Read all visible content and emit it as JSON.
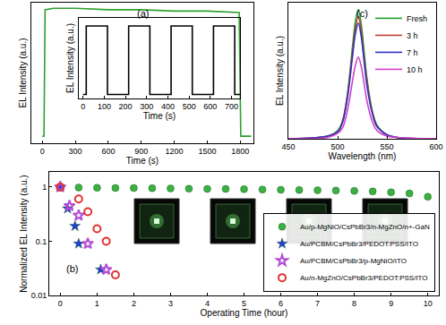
{
  "chart_data": [
    {
      "type": "line",
      "title": "(a)",
      "x_label": "Time (s)",
      "y_label": "EL Intensity (a.u.)",
      "x": [
        0,
        15,
        25,
        100,
        300,
        600,
        900,
        1200,
        1500,
        1700,
        1790,
        1805,
        1900
      ],
      "values": [
        0.05,
        0.05,
        0.95,
        0.96,
        0.96,
        0.95,
        0.95,
        0.94,
        0.94,
        0.93,
        0.93,
        0.05,
        0.05
      ],
      "color": "#2ca02c",
      "xlim": [
        -100,
        1920
      ],
      "xticks": [
        0,
        300,
        600,
        900,
        1200,
        1500,
        1800
      ],
      "ylim": [
        0,
        1
      ],
      "tick_labels": "x"
    },
    {
      "type": "line",
      "x_label": "Time (s)",
      "y_label": "EL Intensity (a.u.)",
      "x": [
        0,
        15,
        15,
        115,
        115,
        215,
        215,
        315,
        315,
        415,
        415,
        515,
        515,
        615,
        615,
        715,
        715,
        740
      ],
      "values": [
        0.05,
        0.05,
        0.9,
        0.9,
        0.05,
        0.05,
        0.9,
        0.9,
        0.05,
        0.05,
        0.9,
        0.9,
        0.05,
        0.05,
        0.9,
        0.9,
        0.05,
        0.05
      ],
      "color": "#000000",
      "xlim": [
        -20,
        740
      ],
      "xticks": [
        0,
        100,
        200,
        300,
        400,
        500,
        600,
        700
      ],
      "ylim": [
        0,
        1
      ],
      "tick_labels": "x"
    },
    {
      "type": "scatter",
      "title": "(b)",
      "x_label": "Operating Time (hour)",
      "y_label": "Normalized EL Intensity (a.u.)",
      "log": "y",
      "legend": "lower right",
      "xlim": [
        -0.3,
        10.3
      ],
      "xticks": [
        0,
        1,
        2,
        3,
        4,
        5,
        6,
        7,
        8,
        9,
        10
      ],
      "ylim": [
        0.01,
        1.9
      ],
      "yticks": [
        0.01,
        0.1,
        1
      ],
      "series": [
        {
          "name": "Au/p-MgNiO/CsPbBr3/n-MgZnO/n+-GaN",
          "color": "#3cb043",
          "marker": "circle",
          "x": [
            0,
            0.5,
            1,
            1.5,
            2,
            2.5,
            3,
            3.5,
            4,
            4.5,
            5,
            5.5,
            6,
            6.5,
            7,
            7.5,
            8,
            8.5,
            9,
            9.5,
            10
          ],
          "values": [
            1,
            0.98,
            0.97,
            0.96,
            0.96,
            0.95,
            0.94,
            0.93,
            0.92,
            0.92,
            0.91,
            0.9,
            0.89,
            0.88,
            0.87,
            0.86,
            0.85,
            0.83,
            0.8,
            0.76,
            0.66
          ]
        },
        {
          "name": "Au/PCBM/CsPbBr3/PEDOT:PSS/ITO",
          "color": "#1f3fd0",
          "marker": "star",
          "x": [
            0,
            0.2,
            0.4,
            0.5,
            1.1
          ],
          "values": [
            1,
            0.4,
            0.19,
            0.09,
            0.03
          ]
        },
        {
          "name": "Au/PCBM/CsPbBr3/p-MgNiO/ITO",
          "color": "#b44dd6",
          "marker": "star-open",
          "x": [
            0,
            0.25,
            0.5,
            0.75,
            1.25
          ],
          "values": [
            1,
            0.45,
            0.3,
            0.09,
            0.03
          ]
        },
        {
          "name": "Au/n-MgZnO/CsPbBr3/PEDOT:PSS/ITO",
          "color": "#e0322f",
          "marker": "circle-open",
          "x": [
            0,
            0.5,
            0.75,
            1,
            1.25,
            1.5
          ],
          "values": [
            1,
            0.6,
            0.35,
            0.17,
            0.1,
            0.024
          ]
        }
      ]
    },
    {
      "type": "line",
      "title": "(c)",
      "x_label": "Wavelength (nm)",
      "y_label": "EL Intensity (a.u.)",
      "legend": "upper right",
      "tick_labels": "x",
      "xlim": [
        450,
        600
      ],
      "xticks": [
        450,
        500,
        550,
        600
      ],
      "ylim": [
        0,
        1
      ],
      "x": [
        450,
        490,
        500,
        505,
        510,
        515,
        518,
        521,
        524,
        527,
        530,
        535,
        540,
        550,
        560,
        600
      ],
      "series": [
        {
          "name": "Fresh",
          "color": "#22a02a",
          "values": [
            0,
            0.02,
            0.06,
            0.13,
            0.33,
            0.67,
            0.86,
            0.95,
            0.84,
            0.63,
            0.43,
            0.21,
            0.1,
            0.03,
            0.01,
            0
          ]
        },
        {
          "name": "3 h",
          "color": "#c04030",
          "values": [
            0,
            0.02,
            0.05,
            0.13,
            0.32,
            0.63,
            0.81,
            0.9,
            0.79,
            0.59,
            0.41,
            0.2,
            0.09,
            0.03,
            0.01,
            0
          ]
        },
        {
          "name": "7 h",
          "color": "#3030c0",
          "values": [
            0,
            0.02,
            0.05,
            0.12,
            0.3,
            0.6,
            0.77,
            0.85,
            0.75,
            0.56,
            0.38,
            0.19,
            0.09,
            0.03,
            0.01,
            0
          ]
        },
        {
          "name": "10 h",
          "color": "#d040d0",
          "values": [
            0,
            0.01,
            0.04,
            0.08,
            0.21,
            0.42,
            0.54,
            0.6,
            0.53,
            0.4,
            0.27,
            0.13,
            0.06,
            0.02,
            0.01,
            0
          ]
        }
      ]
    }
  ]
}
